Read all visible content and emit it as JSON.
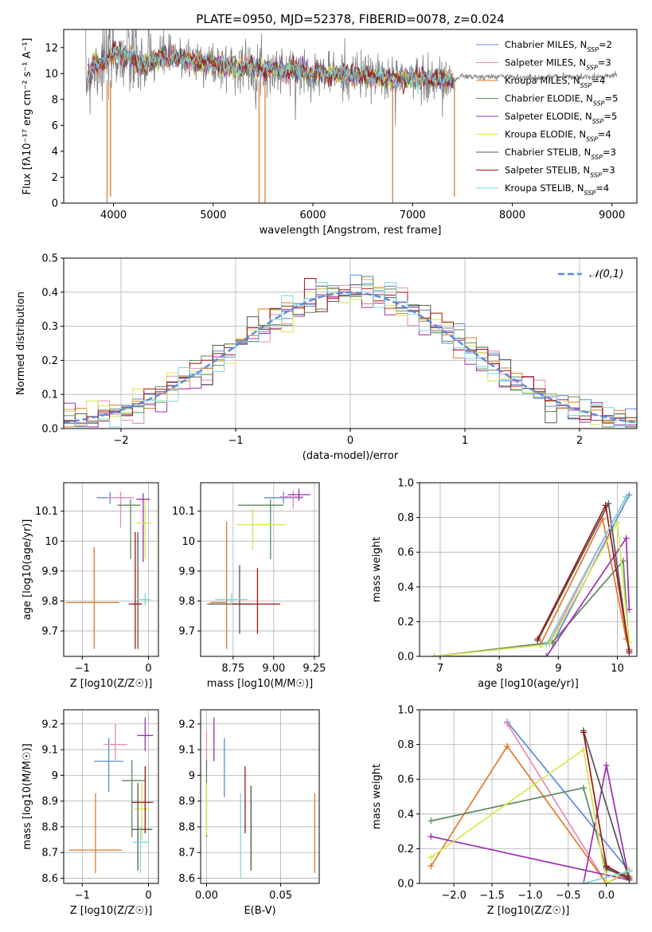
{
  "title": "PLATE=0950, MJD=52378, FIBERID=0078, z=0.024",
  "colors": {
    "s0": "#5b8bd9",
    "s1": "#e88ab7",
    "s2": "#e07a2a",
    "s3": "#5e8a5e",
    "s4": "#9b30b0",
    "s5": "#d6e84e",
    "s6": "#555555",
    "s7": "#a31515",
    "s8": "#7fd6dd",
    "data": "#808080",
    "normal": "#5b8bd9"
  },
  "chart_data": [
    {
      "type": "line",
      "name": "spectrum",
      "title": "PLATE=0950, MJD=52378, FIBERID=0078, z=0.024",
      "xlabel": "wavelength [Angstrom, rest frame]",
      "ylabel": "Flux [fλ10⁻¹⁷ erg cm⁻² s⁻¹ A⁻¹]",
      "xlim": [
        3500,
        9250
      ],
      "ylim": [
        0,
        13.4
      ],
      "xticks": [
        4000,
        5000,
        6000,
        7000,
        8000,
        9000
      ],
      "yticks": [
        0,
        2,
        4,
        6,
        8,
        10,
        12
      ],
      "grid": false,
      "legend_position": "top-right",
      "legend": [
        "Chabrier MILES, N_SSP=2",
        "Salpeter MILES, N_SSP=3",
        "Kroupa MILES, N_SSP=4",
        "Chabrier ELODIE, N_SSP=5",
        "Salpeter ELODIE, N_SSP=5",
        "Kroupa ELODIE, N_SSP=4",
        "Chabrier STELIB, N_SSP=3",
        "Salpeter STELIB, N_SSP=3",
        "Kroupa STELIB, N_SSP=4"
      ],
      "continuum": [
        [
          3720,
          9.5
        ],
        [
          3800,
          10.6
        ],
        [
          3900,
          10.9
        ],
        [
          4000,
          11.6
        ],
        [
          4100,
          11.4
        ],
        [
          4200,
          11.1
        ],
        [
          4300,
          10.6
        ],
        [
          4400,
          11.0
        ],
        [
          4500,
          11.3
        ],
        [
          4700,
          11.1
        ],
        [
          4900,
          10.9
        ],
        [
          5100,
          10.6
        ],
        [
          5300,
          10.5
        ],
        [
          5500,
          10.3
        ],
        [
          5700,
          10.3
        ],
        [
          5900,
          10.2
        ],
        [
          6100,
          10.0
        ],
        [
          6300,
          9.9
        ],
        [
          6500,
          9.8
        ],
        [
          6700,
          9.7
        ],
        [
          6900,
          9.6
        ],
        [
          7100,
          9.6
        ],
        [
          7300,
          9.5
        ],
        [
          7420,
          9.5
        ],
        [
          7500,
          9.8
        ],
        [
          7700,
          9.7
        ],
        [
          7900,
          9.8
        ],
        [
          8100,
          9.7
        ],
        [
          8300,
          9.7
        ],
        [
          8500,
          9.8
        ],
        [
          8700,
          9.7
        ],
        [
          8900,
          9.8
        ],
        [
          9050,
          9.9
        ]
      ],
      "model_end": 7420,
      "dips": [
        [
          3935,
          0
        ],
        [
          3970,
          0.5
        ],
        [
          5460,
          0
        ],
        [
          5520,
          0
        ],
        [
          6800,
          0
        ],
        [
          7420,
          0.5
        ]
      ]
    },
    {
      "type": "bar",
      "name": "residuals",
      "xlabel": "(data-model)/error",
      "ylabel": "Normed distribution",
      "xlim": [
        -2.5,
        2.5
      ],
      "ylim": [
        0,
        0.5
      ],
      "xticks": [
        -2,
        -1,
        0,
        1,
        2
      ],
      "yticks": [
        0.0,
        0.1,
        0.2,
        0.3,
        0.4,
        0.5
      ],
      "grid": true,
      "legend_position": "top-right",
      "legend": [
        "𝒩(0,1)"
      ],
      "bin_width": 0.1
    },
    {
      "type": "scatter",
      "name": "age-vs-Z",
      "xlabel": "Z [log10(Z/Z☉)]",
      "ylabel": "age  [log10(age/yr)]",
      "xlim": [
        -1.28,
        0.15
      ],
      "ylim": [
        9.615,
        10.195
      ],
      "xticks": [
        -1,
        0
      ],
      "yticks": [
        9.7,
        9.8,
        9.9,
        10.0,
        10.1
      ],
      "grid": true,
      "points": [
        {
          "x": -0.58,
          "y": 10.145,
          "xerr": [
            0.2,
            0.2
          ],
          "yerr": [
            0.02,
            0.02
          ],
          "c": 0
        },
        {
          "x": -0.42,
          "y": 10.145,
          "xerr": [
            0.2,
            0.2
          ],
          "yerr": [
            0.1,
            0.02
          ],
          "c": 1
        },
        {
          "x": -0.82,
          "y": 9.795,
          "xerr": [
            0.42,
            0.38
          ],
          "yerr": [
            0.155,
            0.185
          ],
          "c": 2
        },
        {
          "x": -0.27,
          "y": 10.12,
          "xerr": [
            0.2,
            0.15
          ],
          "yerr": [
            0.18,
            0.02
          ],
          "c": 3
        },
        {
          "x": -0.08,
          "y": 10.14,
          "xerr": [
            0.1,
            0.1
          ],
          "yerr": [
            0.21,
            0.02
          ],
          "c": 4
        },
        {
          "x": -0.05,
          "y": 10.06,
          "xerr": [
            0.13,
            0.1
          ],
          "yerr": [
            0.12,
            0.08
          ],
          "c": 5
        },
        {
          "x": -0.16,
          "y": 9.79,
          "xerr": [
            0.1,
            0.06
          ],
          "yerr": [
            0.15,
            0.24
          ],
          "c": 6
        },
        {
          "x": -0.2,
          "y": 9.79,
          "xerr": [
            0.1,
            0.1
          ],
          "yerr": [
            0.15,
            0.24
          ],
          "c": 7
        },
        {
          "x": -0.05,
          "y": 9.805,
          "xerr": [
            0.12,
            0.08
          ],
          "yerr": [
            0.02,
            0.02
          ],
          "c": 8
        }
      ]
    },
    {
      "type": "scatter",
      "name": "age-vs-mass",
      "xlabel": "mass [log10(M/M☉)]",
      "ylabel": "",
      "xlim": [
        8.55,
        9.28
      ],
      "ylim": [
        9.615,
        10.195
      ],
      "xticks": [
        8.75,
        9.0,
        9.25
      ],
      "xticklabels": [
        "8.75",
        "9.00",
        "9.25"
      ],
      "yticks": [
        9.7,
        9.8,
        9.9,
        10.0,
        10.1
      ],
      "grid": true,
      "points": [
        {
          "x": 9.06,
          "y": 10.145,
          "xerr": [
            0.12,
            0.12
          ],
          "yerr": [
            0.02,
            0.02
          ],
          "c": 0
        },
        {
          "x": 9.12,
          "y": 10.148,
          "xerr": [
            0.08,
            0.06
          ],
          "yerr": [
            0.04,
            0.02
          ],
          "c": 1
        },
        {
          "x": 8.71,
          "y": 9.795,
          "xerr": [
            0.1,
            0.0
          ],
          "yerr": [
            0.155,
            0.27
          ],
          "c": 2
        },
        {
          "x": 8.98,
          "y": 10.12,
          "xerr": [
            0.2,
            0.08
          ],
          "yerr": [
            0.18,
            0.02
          ],
          "c": 3
        },
        {
          "x": 9.155,
          "y": 10.155,
          "xerr": [
            0.07,
            0.07
          ],
          "yerr": [
            0.02,
            0.02
          ],
          "c": 4
        },
        {
          "x": 8.87,
          "y": 10.055,
          "xerr": [
            0.1,
            0.2
          ],
          "yerr": [
            0.085,
            0.055
          ],
          "c": 5
        },
        {
          "x": 8.79,
          "y": 9.79,
          "xerr": [
            0.2,
            0.08
          ],
          "yerr": [
            0.1,
            0.13
          ],
          "c": 6
        },
        {
          "x": 8.9,
          "y": 9.79,
          "xerr": [
            0.16,
            0.14
          ],
          "yerr": [
            0.1,
            0.12
          ],
          "c": 7
        },
        {
          "x": 8.74,
          "y": 9.805,
          "xerr": [
            0.1,
            0.1
          ],
          "yerr": [
            0.02,
            0.02
          ],
          "c": 8
        }
      ]
    },
    {
      "type": "line",
      "name": "weight-vs-age",
      "xlabel": "age  [log10(age/yr)]",
      "ylabel": "mass weight",
      "xlim": [
        6.65,
        10.33
      ],
      "ylim": [
        0,
        1.0
      ],
      "xticks": [
        7,
        8,
        9,
        10
      ],
      "yticks": [
        0.0,
        0.2,
        0.4,
        0.6,
        0.8,
        1.0
      ],
      "grid": true,
      "series": [
        {
          "c": 0,
          "x": [
            8.9,
            10.2
          ],
          "y": [
            0.07,
            0.93
          ]
        },
        {
          "c": 1,
          "x": [
            6.9,
            8.85,
            10.15
          ],
          "y": [
            0.0,
            0.08,
            0.92
          ]
        },
        {
          "c": 2,
          "x": [
            6.9,
            8.7,
            9.75,
            10.15
          ],
          "y": [
            0.0,
            0.07,
            0.79,
            0.1
          ]
        },
        {
          "c": 3,
          "x": [
            6.9,
            8.9,
            10.1,
            10.2
          ],
          "y": [
            0.0,
            0.08,
            0.55,
            0.04
          ]
        },
        {
          "c": 4,
          "x": [
            6.9,
            8.8,
            10.15,
            10.2
          ],
          "y": [
            0.0,
            0.0,
            0.68,
            0.27
          ]
        },
        {
          "c": 5,
          "x": [
            6.9,
            8.85,
            10.0,
            10.2
          ],
          "y": [
            0.0,
            0.07,
            0.77,
            0.08
          ]
        },
        {
          "c": 6,
          "x": [
            8.65,
            9.85,
            10.2
          ],
          "y": [
            0.09,
            0.88,
            0.02
          ]
        },
        {
          "c": 7,
          "x": [
            8.65,
            9.8,
            10.2
          ],
          "y": [
            0.1,
            0.87,
            0.03
          ]
        },
        {
          "c": 8,
          "x": [
            8.8,
            10.15
          ],
          "y": [
            0.07,
            0.92
          ]
        }
      ]
    },
    {
      "type": "scatter",
      "name": "mass-vs-Z",
      "xlabel": "Z [log10(Z/Z☉)]",
      "ylabel": "mass [log10(M/M☉)]",
      "xlim": [
        -1.28,
        0.15
      ],
      "ylim": [
        8.58,
        9.255
      ],
      "xticks": [
        -1,
        0
      ],
      "yticks": [
        8.6,
        8.7,
        8.8,
        8.9,
        9.0,
        9.1,
        9.2
      ],
      "grid": true,
      "points": [
        {
          "x": -0.6,
          "y": 9.055,
          "xerr": [
            0.22,
            0.22
          ],
          "yerr": [
            0.12,
            0.09
          ],
          "c": 0
        },
        {
          "x": -0.5,
          "y": 9.12,
          "xerr": [
            0.18,
            0.18
          ],
          "yerr": [
            0.06,
            0.08
          ],
          "c": 1
        },
        {
          "x": -0.8,
          "y": 8.71,
          "xerr": [
            0.4,
            0.4
          ],
          "yerr": [
            0.09,
            0.22
          ],
          "c": 2
        },
        {
          "x": -0.25,
          "y": 8.98,
          "xerr": [
            0.15,
            0.2
          ],
          "yerr": [
            0.22,
            0.08
          ],
          "c": 3
        },
        {
          "x": -0.05,
          "y": 9.155,
          "xerr": [
            0.12,
            0.12
          ],
          "yerr": [
            0.06,
            0.07
          ],
          "c": 4
        },
        {
          "x": -0.1,
          "y": 8.87,
          "xerr": [
            0.12,
            0.12
          ],
          "yerr": [
            0.12,
            0.1
          ],
          "c": 5
        },
        {
          "x": -0.16,
          "y": 8.79,
          "xerr": [
            0.1,
            0.22
          ],
          "yerr": [
            0.16,
            0.18
          ],
          "c": 6
        },
        {
          "x": -0.05,
          "y": 8.895,
          "xerr": [
            0.2,
            0.12
          ],
          "yerr": [
            0.12,
            0.14
          ],
          "c": 7
        },
        {
          "x": -0.12,
          "y": 8.74,
          "xerr": [
            0.12,
            0.12
          ],
          "yerr": [
            0.12,
            0.06
          ],
          "c": 8
        }
      ]
    },
    {
      "type": "scatter",
      "name": "mass-vs-EBV",
      "xlabel": "E(B-V)",
      "ylabel": "",
      "xlim": [
        -0.004,
        0.076
      ],
      "ylim": [
        8.58,
        9.255
      ],
      "xticks": [
        0.0,
        0.05
      ],
      "xticklabels": [
        "0.00",
        "0.05"
      ],
      "yticks": [
        8.6,
        8.7,
        8.8,
        8.9,
        9.0,
        9.1,
        9.2
      ],
      "grid": true,
      "points": [
        {
          "x": 0.012,
          "y": 9.055,
          "yerr": [
            0.14,
            0.09
          ],
          "c": 0
        },
        {
          "x": 0.0,
          "y": 9.12,
          "yerr": [
            0.1,
            0.05
          ],
          "c": 1
        },
        {
          "x": 0.073,
          "y": 8.71,
          "yerr": [
            0.09,
            0.22
          ],
          "c": 2
        },
        {
          "x": 0.0,
          "y": 8.98,
          "yerr": [
            0.22,
            0.08
          ],
          "c": 3
        },
        {
          "x": 0.005,
          "y": 9.155,
          "yerr": [
            0.1,
            0.07
          ],
          "c": 4
        },
        {
          "x": 0.0,
          "y": 8.87,
          "yerr": [
            0.1,
            0.1
          ],
          "c": 5
        },
        {
          "x": 0.03,
          "y": 8.79,
          "yerr": [
            0.16,
            0.17
          ],
          "c": 6
        },
        {
          "x": 0.026,
          "y": 8.895,
          "yerr": [
            0.12,
            0.14
          ],
          "c": 7
        },
        {
          "x": 0.023,
          "y": 8.74,
          "yerr": [
            0.14,
            0.19
          ],
          "c": 8
        }
      ]
    },
    {
      "type": "line",
      "name": "weight-vs-Z",
      "xlabel": "Z [log10(Z/Z☉)]",
      "ylabel": "mass weight",
      "xlim": [
        -2.45,
        0.4
      ],
      "ylim": [
        0,
        1.0
      ],
      "xticks": [
        -2.0,
        -1.5,
        -1.0,
        -0.5,
        0.0
      ],
      "xticklabels": [
        "−2.0",
        "−1.5",
        "−1.0",
        "−0.5",
        "0.0"
      ],
      "yticks": [
        0.0,
        0.2,
        0.4,
        0.6,
        0.8,
        1.0
      ],
      "grid": true,
      "series": [
        {
          "c": 0,
          "x": [
            -1.3,
            0.3
          ],
          "y": [
            0.93,
            0.07
          ]
        },
        {
          "c": 1,
          "x": [
            -1.3,
            0.0,
            0.3
          ],
          "y": [
            0.92,
            0.0,
            0.08
          ]
        },
        {
          "c": 2,
          "x": [
            -2.3,
            -1.3,
            0.0,
            0.3
          ],
          "y": [
            0.1,
            0.79,
            0.0,
            0.07
          ]
        },
        {
          "c": 3,
          "x": [
            -2.3,
            -0.3,
            0.0,
            0.3
          ],
          "y": [
            0.36,
            0.55,
            0.08,
            0.04
          ]
        },
        {
          "c": 4,
          "x": [
            -2.3,
            0.3,
            0.0,
            -0.3
          ],
          "y": [
            0.27,
            0.02,
            0.68,
            0.0
          ]
        },
        {
          "c": 5,
          "x": [
            -2.3,
            -0.3,
            0.0,
            0.3
          ],
          "y": [
            0.15,
            0.77,
            0.0,
            0.08
          ]
        },
        {
          "c": 6,
          "x": [
            -0.3,
            0.3,
            0.0
          ],
          "y": [
            0.88,
            0.02,
            0.09
          ]
        },
        {
          "c": 7,
          "x": [
            -0.3,
            0.0,
            0.3
          ],
          "y": [
            0.87,
            0.1,
            0.03
          ]
        },
        {
          "c": 8,
          "x": [
            -0.3,
            0.3
          ],
          "y": [
            0.0,
            0.07
          ]
        }
      ]
    }
  ]
}
